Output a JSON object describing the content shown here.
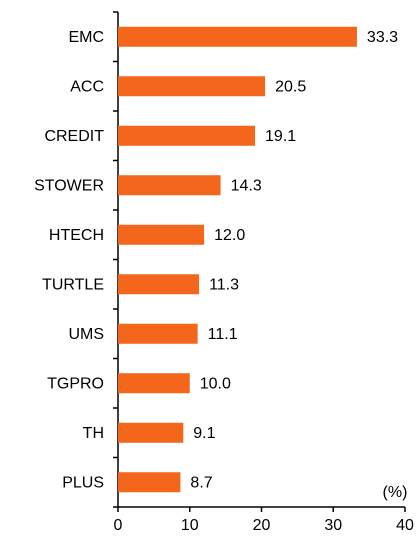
{
  "chart_data": {
    "type": "bar",
    "orientation": "horizontal",
    "categories": [
      "EMC",
      "ACC",
      "CREDIT",
      "STOWER",
      "HTECH",
      "TURTLE",
      "UMS",
      "TGPRO",
      "TH",
      "PLUS"
    ],
    "values": [
      33.3,
      20.5,
      19.1,
      14.3,
      12.0,
      11.3,
      11.1,
      10.0,
      9.1,
      8.7
    ],
    "value_labels": [
      "33.3",
      "20.5",
      "19.1",
      "14.3",
      "12.0",
      "11.3",
      "11.1",
      "10.0",
      "9.1",
      "8.7"
    ],
    "color": "#f4661b",
    "unit_label": "(%)",
    "xlim": [
      0,
      40
    ],
    "xticks": [
      0,
      10,
      20,
      30,
      40
    ],
    "grid": false
  }
}
